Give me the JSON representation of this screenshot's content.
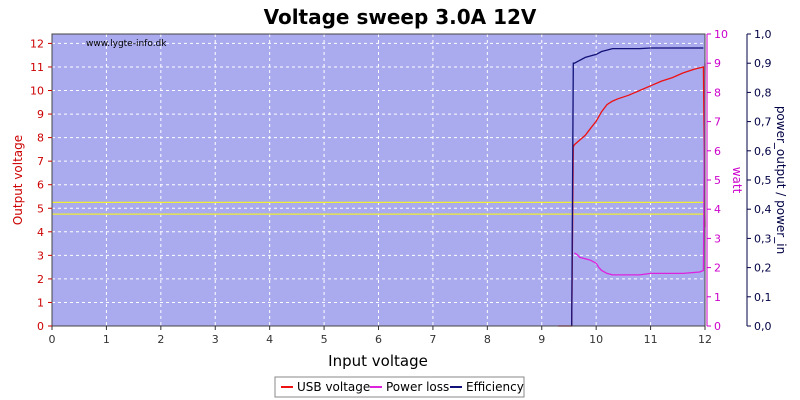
{
  "chart_data": {
    "type": "line",
    "title": "Voltage sweep 3.0A 12V",
    "watermark": "www.lygte-info.dk",
    "xlabel": "Input voltage",
    "ylabel_left": "Output voltage",
    "ylabel_right1": "watt",
    "ylabel_right2": "power_output / power_in",
    "xlim": [
      0,
      12
    ],
    "ylim_left": [
      0,
      12.4
    ],
    "ylim_right1": [
      0,
      10
    ],
    "ylim_right2": [
      0,
      1.0
    ],
    "x_ticks": [
      "0",
      "1",
      "2",
      "3",
      "4",
      "5",
      "6",
      "7",
      "8",
      "9",
      "10",
      "11",
      "12"
    ],
    "y_left_ticks": [
      "0",
      "1",
      "2",
      "3",
      "4",
      "5",
      "6",
      "7",
      "8",
      "9",
      "10",
      "11",
      "12"
    ],
    "y_right1_ticks": [
      "0",
      "1",
      "2",
      "3",
      "4",
      "5",
      "6",
      "7",
      "8",
      "9",
      "10"
    ],
    "y_right2_ticks": [
      "0,0",
      "0,1",
      "0,2",
      "0,3",
      "0,4",
      "0,5",
      "0,6",
      "0,7",
      "0,8",
      "0,9",
      "1,0"
    ],
    "grid": true,
    "reference_lines_left": [
      4.75,
      5.25
    ],
    "legend_position": "bottom",
    "colors": {
      "plot_bg": "#aaaaee",
      "usb_voltage": "#ee1111",
      "power_loss": "#dd22dd",
      "efficiency": "#111177",
      "reference": "#eeee33",
      "left_axis": "#cc0000",
      "right1_axis": "#cc00cc",
      "right2_axis": "#000044"
    },
    "series": [
      {
        "name": "USB voltage",
        "axis": "left",
        "x": [
          9.3,
          9.55,
          9.58,
          9.6,
          9.7,
          9.8,
          9.9,
          10.0,
          10.1,
          10.2,
          10.3,
          10.4,
          10.6,
          10.8,
          11.0,
          11.2,
          11.4,
          11.6,
          11.8,
          11.97,
          12.0
        ],
        "y": [
          0,
          0,
          7.6,
          7.7,
          7.9,
          8.1,
          8.4,
          8.7,
          9.1,
          9.4,
          9.55,
          9.65,
          9.8,
          10.0,
          10.2,
          10.4,
          10.55,
          10.75,
          10.9,
          11.0,
          4.2
        ]
      },
      {
        "name": "Power loss",
        "axis": "right1",
        "x": [
          9.6,
          9.65,
          9.7,
          9.8,
          9.9,
          10.0,
          10.05,
          10.1,
          10.2,
          10.3,
          10.5,
          10.8,
          11.0,
          11.3,
          11.6,
          11.9,
          11.97,
          12.0
        ],
        "y": [
          2.5,
          2.45,
          2.35,
          2.3,
          2.25,
          2.15,
          2.0,
          1.9,
          1.8,
          1.75,
          1.75,
          1.75,
          1.8,
          1.8,
          1.8,
          1.85,
          1.9,
          9.0
        ]
      },
      {
        "name": "Efficiency",
        "axis": "right2",
        "x": [
          9.55,
          9.58,
          9.6,
          9.7,
          9.8,
          9.9,
          10.0,
          10.1,
          10.2,
          10.3,
          10.5,
          10.8,
          11.0,
          11.5,
          11.97
        ],
        "y": [
          0.0,
          0.9,
          0.9,
          0.91,
          0.92,
          0.925,
          0.93,
          0.94,
          0.945,
          0.95,
          0.95,
          0.95,
          0.952,
          0.952,
          0.952
        ]
      }
    ]
  }
}
